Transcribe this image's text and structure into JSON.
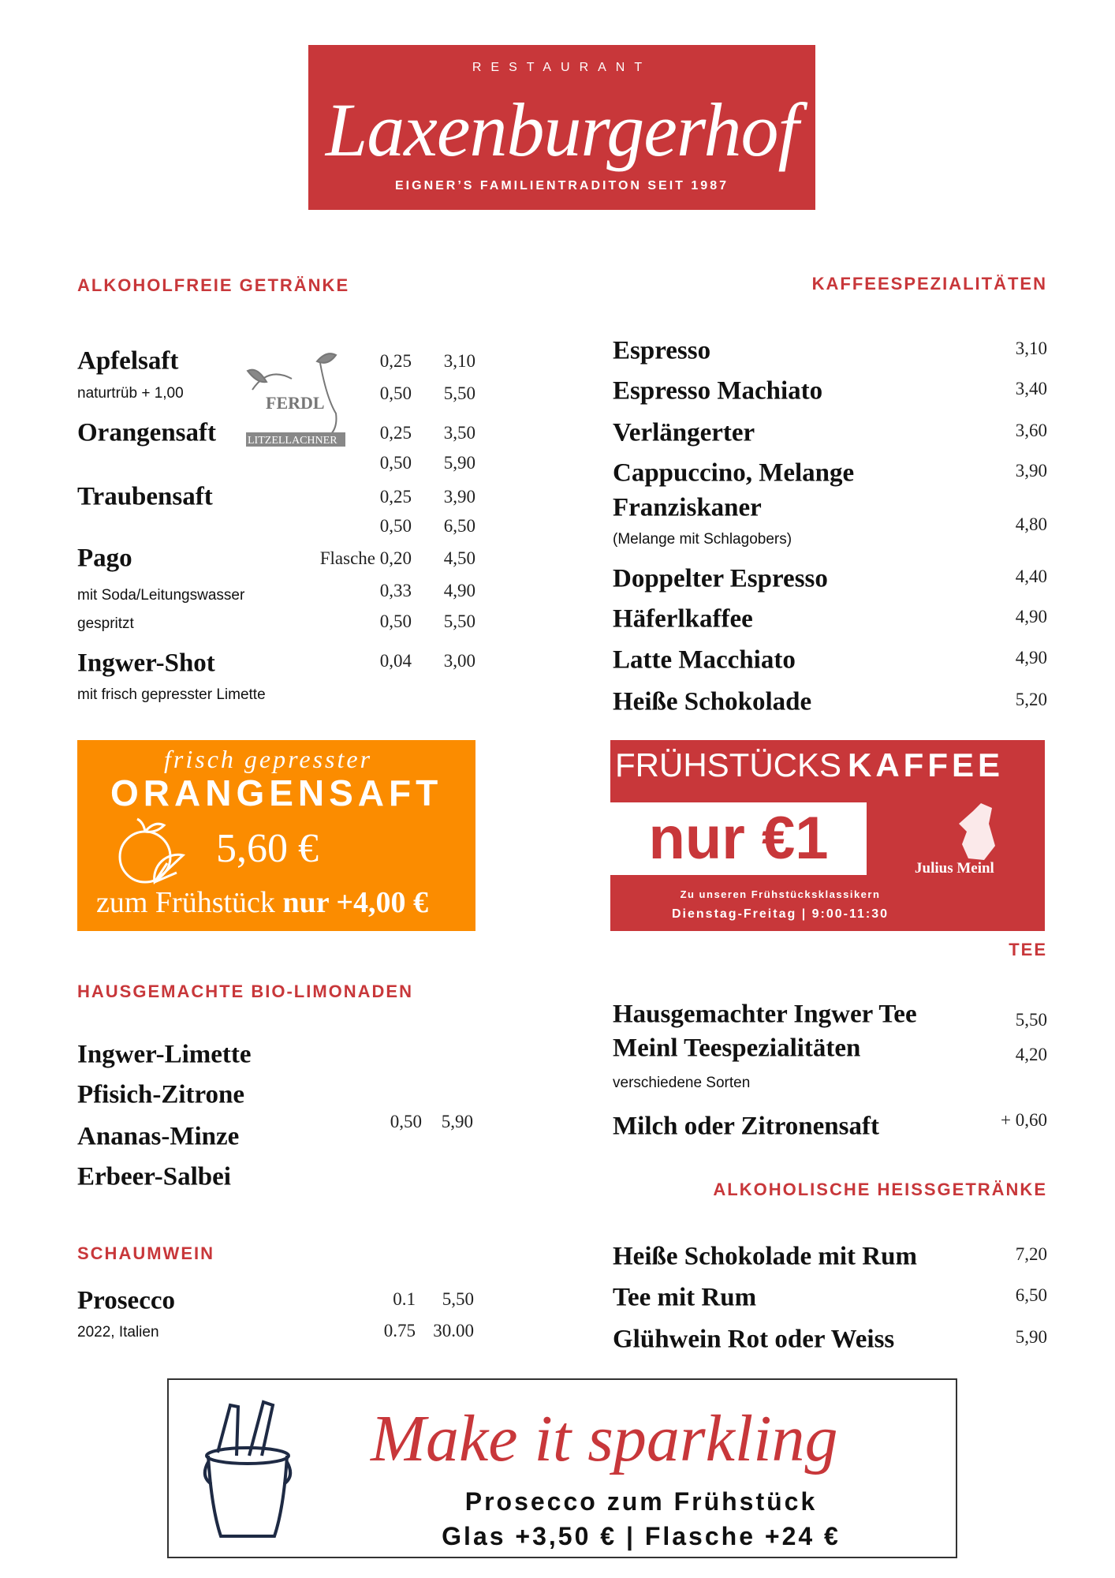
{
  "logo": {
    "restaurant": "RESTAURANT",
    "name": "Laxenburgerhof",
    "tagline": "EIGNER’S FAMILIENTRADITON SEIT 1987"
  },
  "colors": {
    "accent": "#c8373a",
    "orange": "#fb8c00"
  },
  "alkoholfrei": {
    "title": "ALKOHOLFREIE GETRÄNKE",
    "brand": {
      "name": "FERDL",
      "sub": "LITZELLACHNER"
    },
    "items": [
      {
        "name": "Apfelsaft",
        "notes": [
          "naturtrüb + 1,00"
        ],
        "sizes": [
          {
            "vol": "0,25",
            "price": "3,10"
          },
          {
            "vol": "0,50",
            "price": "5,50"
          }
        ]
      },
      {
        "name": "Orangensaft",
        "notes": [],
        "sizes": [
          {
            "vol": "0,25",
            "price": "3,50"
          },
          {
            "vol": "0,50",
            "price": "5,90"
          }
        ]
      },
      {
        "name": "Traubensaft",
        "notes": [],
        "sizes": [
          {
            "vol": "0,25",
            "price": "3,90"
          },
          {
            "vol": "0,50",
            "price": "6,50"
          }
        ]
      },
      {
        "name": "Pago",
        "notes": [
          "mit Soda/Leitungswasser",
          "gespritzt"
        ],
        "sizes": [
          {
            "vol": "Flasche 0,20",
            "price": "4,50"
          },
          {
            "vol": "0,33",
            "price": "4,90"
          },
          {
            "vol": "0,50",
            "price": "5,50"
          }
        ]
      },
      {
        "name": "Ingwer-Shot",
        "notes": [
          "mit frisch gepresster Limette"
        ],
        "sizes": [
          {
            "vol": "0,04",
            "price": "3,00"
          }
        ]
      }
    ]
  },
  "orange_promo": {
    "script": "frisch gepresster",
    "title": "ORANGENSAFT",
    "price": "5,60 €",
    "line": "zum Frühstück",
    "line_bold": "nur +4,00 €",
    "icon": "orange-icon"
  },
  "kaffee": {
    "title": "KAFFEESPEZIALITÄTEN",
    "items": [
      {
        "name": "Espresso",
        "price": "3,10"
      },
      {
        "name": "Espresso Machiato",
        "price": "3,40"
      },
      {
        "name": "Verlängerter",
        "price": "3,60"
      },
      {
        "name": "Cappuccino, Melange",
        "price": "3,90"
      },
      {
        "name": "Franziskaner",
        "price": "4,80",
        "note": "(Melange mit Schlagobers)"
      },
      {
        "name": "Doppelter Espresso",
        "price": "4,40"
      },
      {
        "name": "Häferlkaffee",
        "price": "4,90"
      },
      {
        "name": "Latte Macchiato",
        "price": "4,90"
      },
      {
        "name": "Heiße Schokolade",
        "price": "5,20"
      }
    ]
  },
  "kaffee_promo": {
    "title_light": "FRÜHSTÜCKS",
    "title_bold": "KAFFEE",
    "price": "nur €1",
    "brand": "Julius Meinl",
    "line1": "Zu unseren Frühstücksklassikern",
    "line2": "Dienstag-Freitag | 9:00-11:30"
  },
  "tee": {
    "title": "TEE",
    "items": [
      {
        "name": "Hausgemachter Ingwer Tee",
        "price": "5,50"
      },
      {
        "name": "Meinl Teespezialitäten",
        "price": "4,20",
        "note": "verschiedene Sorten"
      },
      {
        "name": "Milch oder Zitronensaft",
        "price": "+ 0,60"
      }
    ]
  },
  "limonaden": {
    "title": "HAUSGEMACHTE BIO-LIMONADEN",
    "items": [
      "Ingwer-Limette",
      "Pfisich-Zitrone",
      "Ananas-Minze",
      "Erbeer-Salbei"
    ],
    "vol": "0,50",
    "price": "5,90"
  },
  "schaumwein": {
    "title": "SCHAUMWEIN",
    "name": "Prosecco",
    "note": "2022, Italien",
    "sizes": [
      {
        "vol": "0.1",
        "price": "5,50"
      },
      {
        "vol": "0.75",
        "price": "30.00"
      }
    ]
  },
  "alkoholisch": {
    "title": "ALKOHOLISCHE HEISSGETRÄNKE",
    "items": [
      {
        "name": "Heiße Schokolade mit Rum",
        "price": "7,20"
      },
      {
        "name": "Tee mit Rum",
        "price": "6,50"
      },
      {
        "name": "Glühwein Rot oder Weiss",
        "price": "5,90"
      }
    ]
  },
  "sparkling": {
    "script": "Make it sparkling",
    "line1": "Prosecco zum Frühstück",
    "line2": "Glas +3,50 € | Flasche +24 €",
    "icon": "champagne-bucket-icon"
  }
}
